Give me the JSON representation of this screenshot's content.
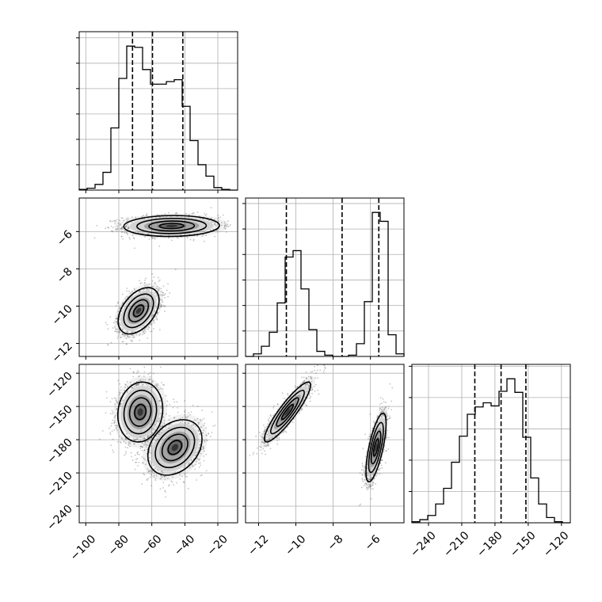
{
  "chart_data": {
    "type": "corner",
    "parameters": [
      "p0",
      "p1",
      "p2"
    ],
    "ranges": {
      "p0": [
        -104,
        -8
      ],
      "p1": [
        -12.7,
        -4.2
      ],
      "p2": [
        -255,
        -112
      ]
    },
    "grid": true,
    "colors": {
      "line": "#000000",
      "grid": "#b0b0b0",
      "fill": "#000000",
      "scatter": "#555555"
    },
    "tick_labels": {
      "p0": [
        "−100",
        "−80",
        "−60",
        "−40",
        "−20"
      ],
      "p1": [
        "−12",
        "−10",
        "−8",
        "−6"
      ],
      "p2": [
        "−240",
        "−210",
        "−180",
        "−150",
        "−120"
      ]
    },
    "tick_values": {
      "p0": [
        -100,
        -80,
        -60,
        -40,
        -20
      ],
      "p1": [
        -12,
        -10,
        -8,
        -6
      ],
      "p2": [
        -240,
        -210,
        -180,
        -150,
        -120
      ]
    },
    "histograms": [
      {
        "param": "p0",
        "edges": [
          -104,
          -99.2,
          -94.4,
          -89.6,
          -84.8,
          -80,
          -75.2,
          -70.4,
          -65.6,
          -60.8,
          -56,
          -51.2,
          -46.4,
          -41.6,
          -36.8,
          -32,
          -27.2,
          -22.4,
          -17.6,
          -12.8,
          -8
        ],
        "counts": [
          1,
          3,
          9,
          28,
          98,
          176,
          227,
          225,
          190,
          167,
          167,
          171,
          174,
          132,
          78,
          40,
          22,
          4,
          1,
          0
        ],
        "quantiles": [
          -71.7,
          -59.6,
          -41.2
        ]
      },
      {
        "param": "p1",
        "edges": [
          -12.7,
          -12.275,
          -11.85,
          -11.425,
          -11,
          -10.575,
          -10.15,
          -9.725,
          -9.3,
          -8.875,
          -8.45,
          -8.025,
          -7.6,
          -7.175,
          -6.75,
          -6.325,
          -5.9,
          -5.475,
          -5.05,
          -4.625,
          -4.2
        ],
        "counts": [
          0,
          2,
          8,
          19,
          42,
          78,
          83,
          53,
          21,
          4,
          1,
          0,
          0,
          1,
          10,
          43,
          113,
          106,
          17,
          2
        ],
        "quantiles": [
          -10.51,
          -7.52,
          -5.55
        ]
      },
      {
        "param": "p2",
        "edges": [
          -255,
          -247.85,
          -240.7,
          -233.55,
          -226.4,
          -219.25,
          -212.1,
          -204.95,
          -197.8,
          -190.65,
          -183.5,
          -176.35,
          -169.2,
          -162.05,
          -154.9,
          -147.75,
          -140.6,
          -133.45,
          -126.3,
          -119.15,
          -112
        ],
        "counts": [
          1,
          3,
          7,
          18,
          33,
          58,
          83,
          104,
          111,
          115,
          112,
          126,
          138,
          125,
          82,
          43,
          18,
          5,
          1,
          0
        ],
        "quantiles": [
          -198.2,
          -174.5,
          -152.1
        ]
      }
    ],
    "joint": [
      {
        "x": "p0",
        "y": "p1",
        "blobs": [
          {
            "cx": -48,
            "cy": -5.7,
            "sx": 14.5,
            "sy": 0.28,
            "rho": 0.05,
            "w": 0.5
          },
          {
            "cx": -68,
            "cy": -10.25,
            "sx": 6.2,
            "sy": 0.62,
            "rho": 0.45,
            "w": 0.5
          }
        ]
      },
      {
        "x": "p0",
        "y": "p2",
        "blobs": [
          {
            "cx": -67,
            "cy": -155,
            "sx": 6.8,
            "sy": 13.5,
            "rho": 0.1,
            "w": 0.5
          },
          {
            "cx": -46,
            "cy": -187,
            "sx": 8.2,
            "sy": 12.5,
            "rho": 0.3,
            "w": 0.5
          }
        ]
      },
      {
        "x": "p1",
        "y": "p2",
        "blobs": [
          {
            "cx": -10.45,
            "cy": -155,
            "sx": 0.62,
            "sy": 13.5,
            "rho": 0.9,
            "w": 0.5
          },
          {
            "cx": -5.7,
            "cy": -187,
            "sx": 0.27,
            "sy": 15.5,
            "rho": 0.7,
            "w": 0.5
          }
        ]
      }
    ]
  }
}
